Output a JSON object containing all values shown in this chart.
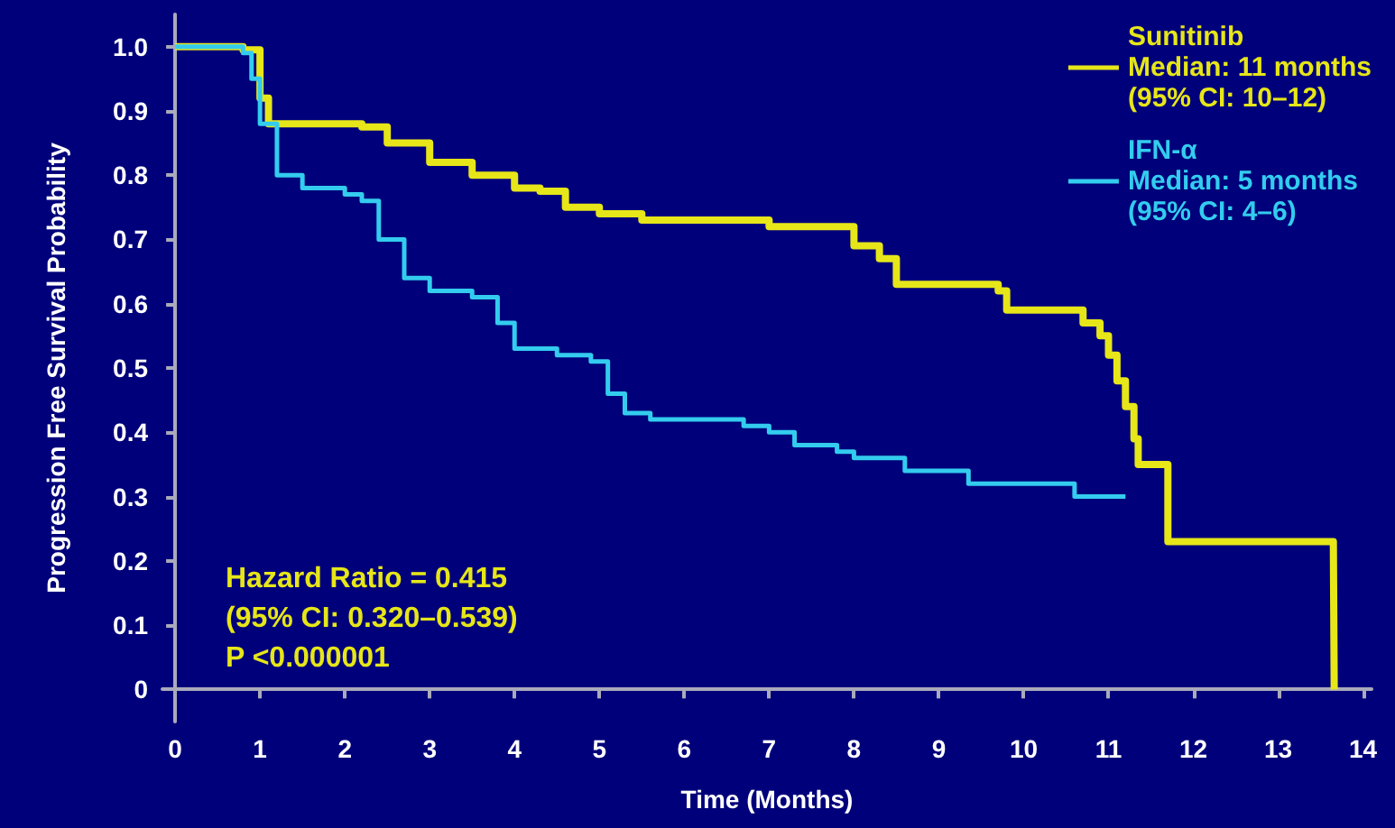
{
  "chart_data": {
    "type": "step",
    "xlabel": "Time (Months)",
    "ylabel": "Progression Free Survival Probability",
    "xlim": [
      -0.15,
      14.1
    ],
    "xticks": [
      0,
      1,
      2,
      3,
      4,
      5,
      6,
      7,
      8,
      9,
      10,
      11,
      12,
      13,
      14
    ],
    "ylim": [
      -0.05,
      1.05
    ],
    "yticks": [
      0,
      0.1,
      0.2,
      0.3,
      0.4,
      0.5,
      0.6,
      0.7,
      0.8,
      0.9,
      {
        "value": 1,
        "label": "1.0"
      }
    ],
    "grid": false,
    "legend": "top right",
    "marker": "none",
    "line_style": "solid",
    "series": [
      {
        "name": "Sunitinib",
        "color": "#e6e619",
        "x": [
          0,
          0.8,
          1.0,
          1.1,
          2.2,
          2.5,
          3.0,
          3.5,
          4.0,
          4.3,
          4.6,
          5.0,
          5.5,
          6.5,
          7.0,
          7.5,
          8.0,
          8.3,
          8.5,
          9.5,
          9.7,
          9.8,
          10.6,
          10.7,
          10.9,
          11.0,
          11.1,
          11.2,
          11.3,
          11.35,
          11.7,
          13.65,
          13.66
        ],
        "values": [
          1.0,
          0.995,
          0.92,
          0.88,
          0.875,
          0.85,
          0.82,
          0.8,
          0.78,
          0.775,
          0.75,
          0.74,
          0.73,
          0.73,
          0.72,
          0.72,
          0.69,
          0.67,
          0.63,
          0.63,
          0.62,
          0.59,
          0.59,
          0.57,
          0.55,
          0.52,
          0.48,
          0.44,
          0.39,
          0.35,
          0.23,
          0.23,
          0.0
        ]
      },
      {
        "name": "IFN-α",
        "color": "#33ccee",
        "x": [
          0,
          0.8,
          0.9,
          1.0,
          1.2,
          1.5,
          2.0,
          2.2,
          2.4,
          2.7,
          3.0,
          3.5,
          3.8,
          4.0,
          4.5,
          4.9,
          5.1,
          5.3,
          5.6,
          6.0,
          6.7,
          7.0,
          7.3,
          7.8,
          8.0,
          8.5,
          8.6,
          9.3,
          9.35,
          10.5,
          10.6,
          11.2
        ],
        "values": [
          1.0,
          0.99,
          0.95,
          0.88,
          0.8,
          0.78,
          0.77,
          0.76,
          0.7,
          0.64,
          0.62,
          0.61,
          0.57,
          0.53,
          0.52,
          0.51,
          0.46,
          0.43,
          0.42,
          0.42,
          0.41,
          0.4,
          0.38,
          0.37,
          0.36,
          0.36,
          0.34,
          0.34,
          0.32,
          0.32,
          0.3,
          0.3
        ]
      }
    ],
    "annotations": [
      "Median: 11 months",
      "(95% CI: 10–12)",
      "Median: 5 months",
      "(95% CI: 4–6)",
      "Hazard Ratio = 0.415",
      "(95% CI: 0.320–0.539)",
      "P <0.000001"
    ]
  }
}
